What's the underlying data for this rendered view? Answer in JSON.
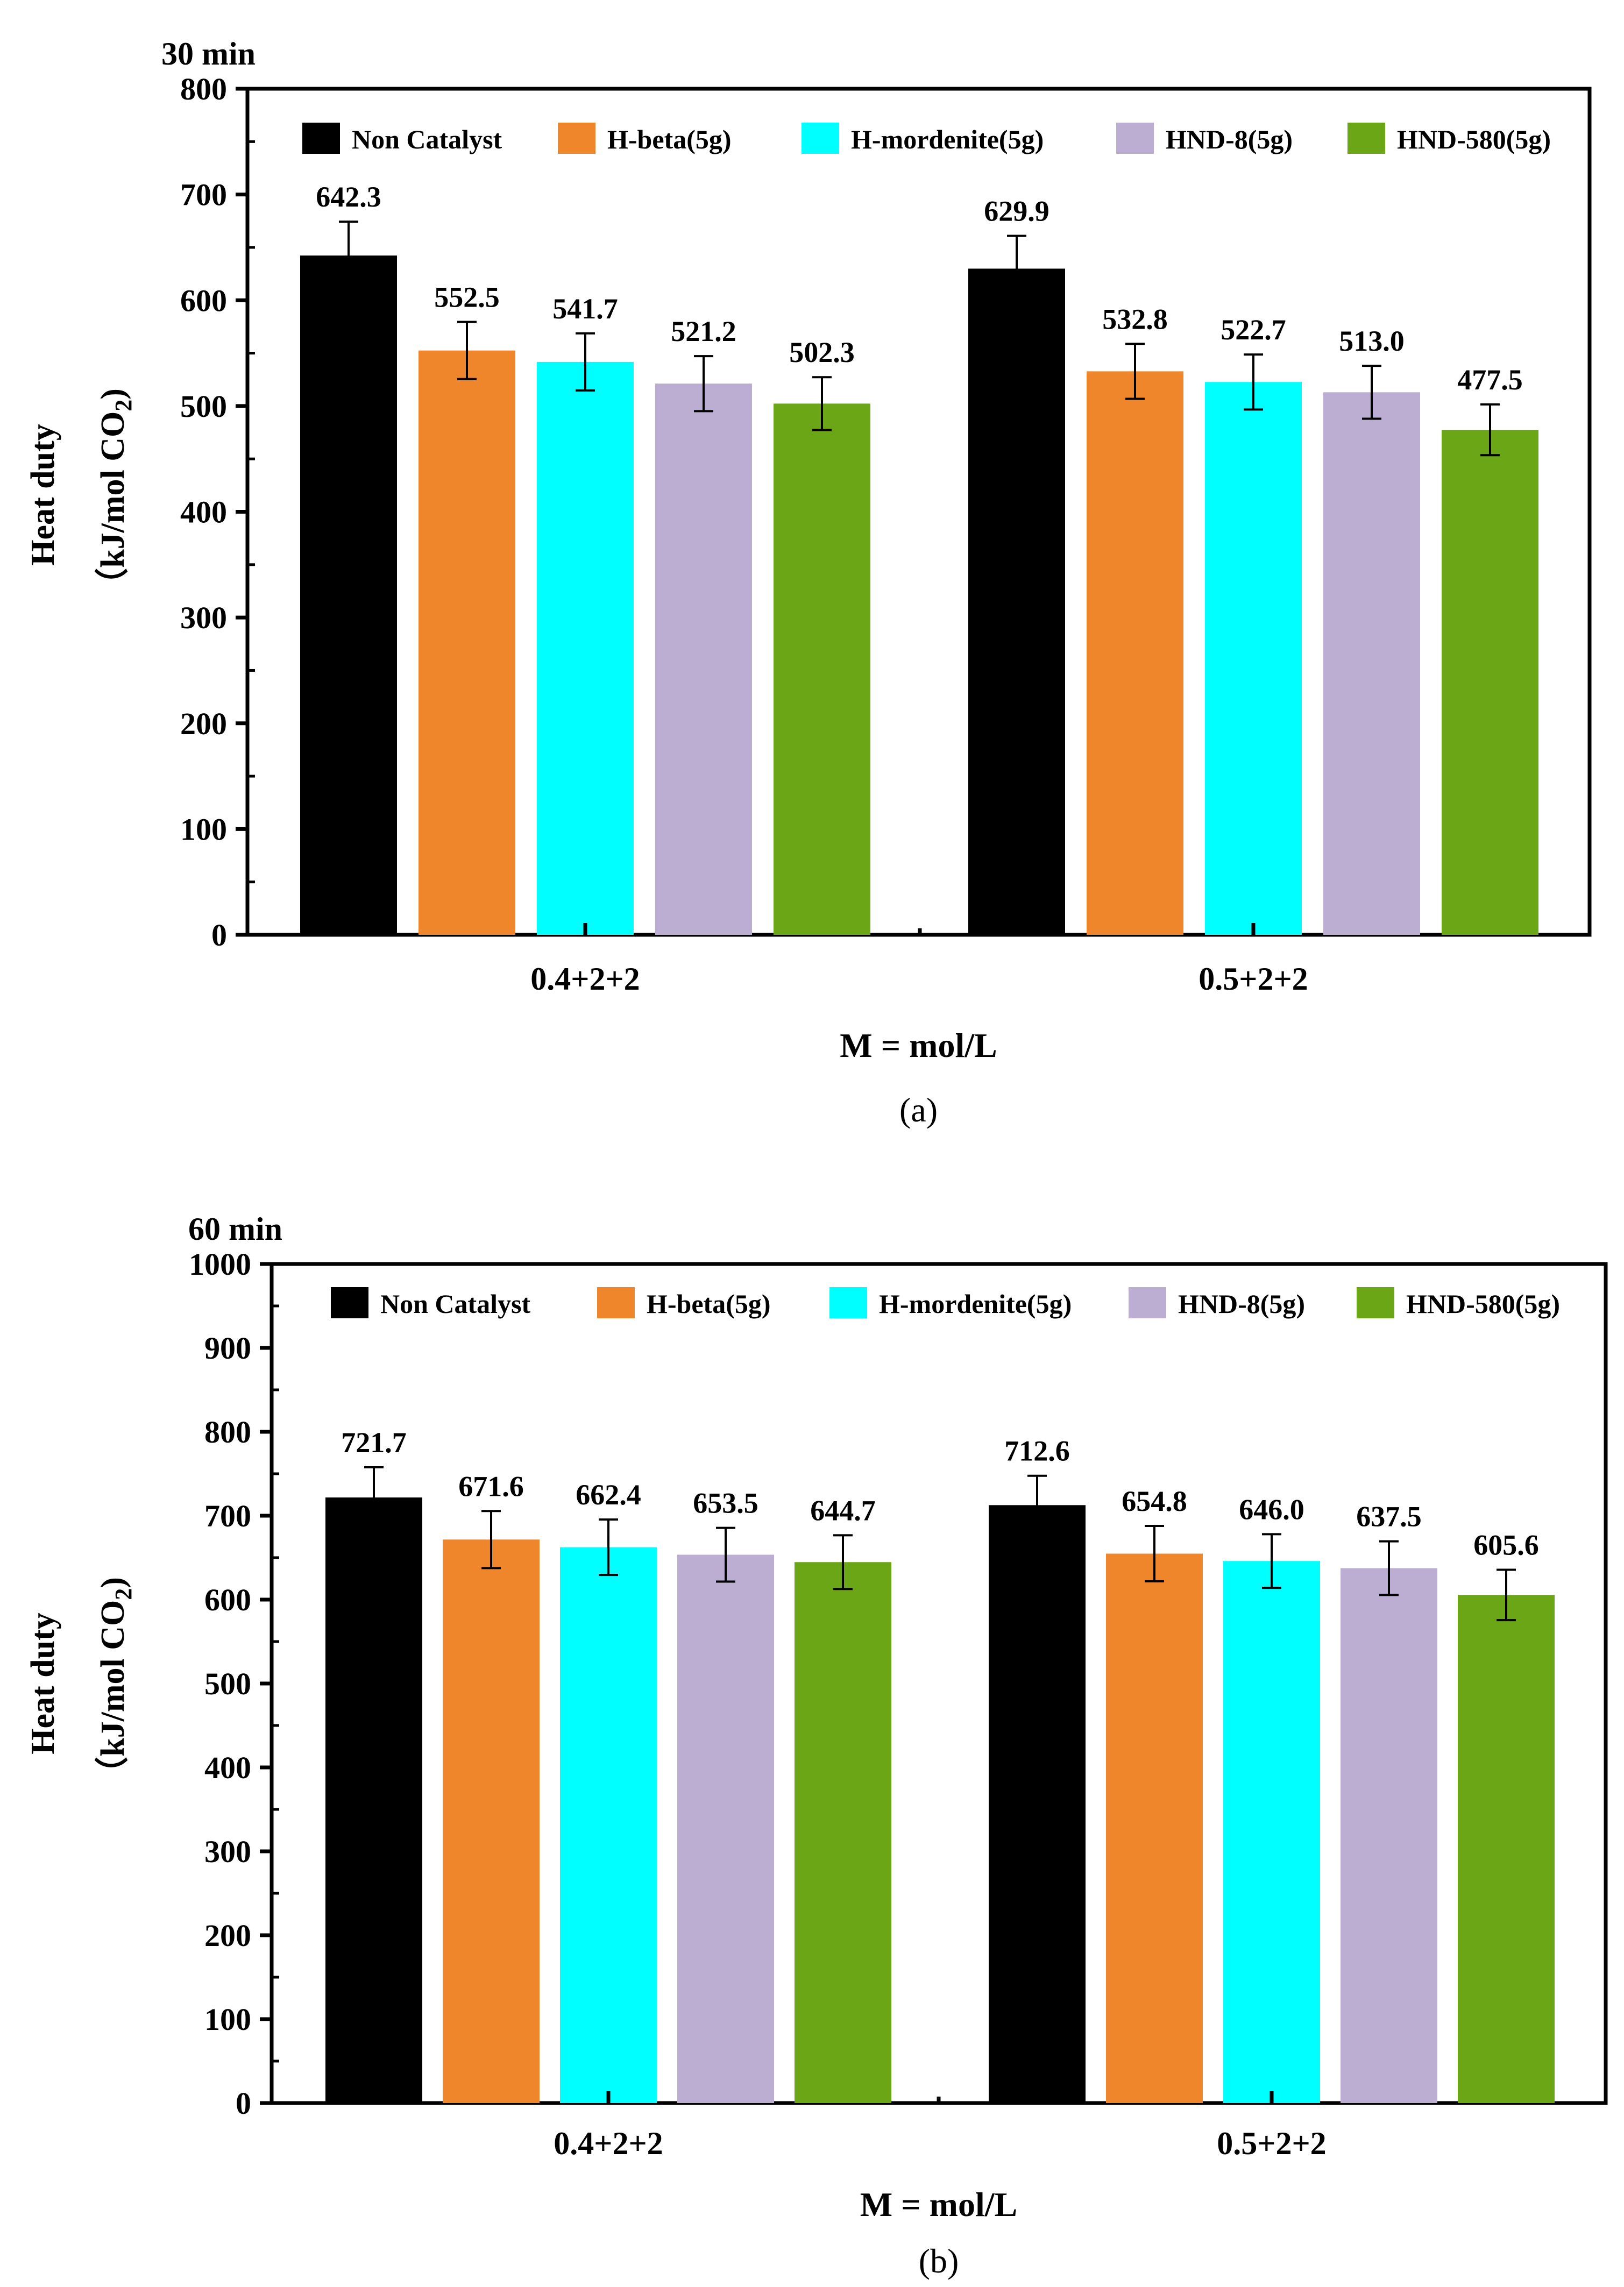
{
  "colors": {
    "Non Catalyst": "#000000",
    "H-beta(5g)": "#F0862B",
    "H-mordenite(5g)": "#00FFFF",
    "HND-8(5g)": "#BCAED3",
    "HND-580(5g)": "#6AA616"
  },
  "chart_data": [
    {
      "type": "bar",
      "panel_label": "(a)",
      "title": "30 min",
      "xlabel": "M = mol/L",
      "ylabel_line1": "Heat duty",
      "ylabel_line2_pre": "（kJ/mol CO",
      "ylabel_sub": "2",
      "ylabel_line2_post": ")",
      "ylim": [
        0,
        800
      ],
      "yticks": [
        0,
        100,
        200,
        300,
        400,
        500,
        600,
        700,
        800
      ],
      "categories": [
        "0.4+2+2",
        "0.5+2+2"
      ],
      "legend_position": "top",
      "series": [
        {
          "name": "Non Catalyst",
          "values": [
            642.3,
            629.9
          ],
          "labels": [
            "642.3",
            "629.9"
          ],
          "errors": [
            32,
            31
          ]
        },
        {
          "name": "H-beta(5g)",
          "values": [
            552.5,
            532.8
          ],
          "labels": [
            "552.5",
            "532.8"
          ],
          "errors": [
            27,
            26
          ]
        },
        {
          "name": "H-mordenite(5g)",
          "values": [
            541.7,
            522.7
          ],
          "labels": [
            "541.7",
            "522.7"
          ],
          "errors": [
            27,
            26
          ]
        },
        {
          "name": "HND-8(5g)",
          "values": [
            521.2,
            513.0
          ],
          "labels": [
            "521.2",
            "513.0"
          ],
          "errors": [
            26,
            25
          ]
        },
        {
          "name": "HND-580(5g)",
          "values": [
            502.3,
            477.5
          ],
          "labels": [
            "502.3",
            "477.5"
          ],
          "errors": [
            25,
            24
          ]
        }
      ]
    },
    {
      "type": "bar",
      "panel_label": "(b)",
      "title": "60 min",
      "xlabel": "M = mol/L",
      "ylabel_line1": "Heat duty",
      "ylabel_line2_pre": "（kJ/mol CO",
      "ylabel_sub": "2",
      "ylabel_line2_post": ")",
      "ylim": [
        0,
        1000
      ],
      "yticks": [
        0,
        100,
        200,
        300,
        400,
        500,
        600,
        700,
        800,
        900,
        1000
      ],
      "categories": [
        "0.4+2+2",
        "0.5+2+2"
      ],
      "legend_position": "top",
      "series": [
        {
          "name": "Non Catalyst",
          "values": [
            721.7,
            712.6
          ],
          "labels": [
            "721.7",
            "712.6"
          ],
          "errors": [
            36,
            35
          ]
        },
        {
          "name": "H-beta(5g)",
          "values": [
            671.6,
            654.8
          ],
          "labels": [
            "671.6",
            "654.8"
          ],
          "errors": [
            34,
            33
          ]
        },
        {
          "name": "H-mordenite(5g)",
          "values": [
            662.4,
            646.0
          ],
          "labels": [
            "662.4",
            "646.0"
          ],
          "errors": [
            33,
            32
          ]
        },
        {
          "name": "HND-8(5g)",
          "values": [
            653.5,
            637.5
          ],
          "labels": [
            "653.5",
            "637.5"
          ],
          "errors": [
            32,
            32
          ]
        },
        {
          "name": "HND-580(5g)",
          "values": [
            644.7,
            605.6
          ],
          "labels": [
            "644.7",
            "605.6"
          ],
          "errors": [
            32,
            30
          ]
        }
      ]
    }
  ]
}
